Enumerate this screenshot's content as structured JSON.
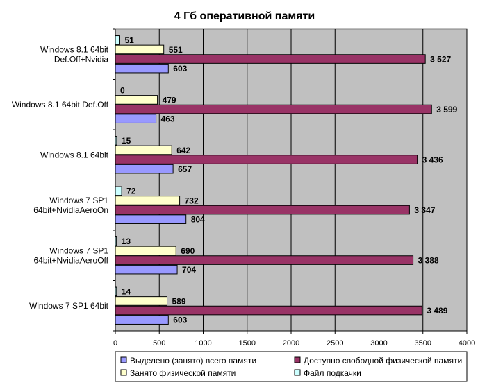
{
  "chart_data": {
    "type": "bar",
    "orientation": "horizontal",
    "title": "4 Гб оперативной памяти",
    "categories": [
      "Windows 8.1 64bit\nDef.Off+Nvidia",
      "Windows 8.1 64bit Def.Off",
      "Windows 8.1 64bit",
      "Windows 7 SP1\n64bit+NvidiaAeroOn",
      "Windows 7 SP1\n64bit+NvidiaAeroOff",
      "Windows 7 SP1 64bit"
    ],
    "series": [
      {
        "name": "Файл подкачки",
        "color": "#ccffff",
        "values": [
          51,
          0,
          15,
          72,
          13,
          14
        ],
        "labels": [
          "51",
          "0",
          "15",
          "72",
          "13",
          "14"
        ]
      },
      {
        "name": "Занято физической памяти",
        "color": "#ffffcc",
        "values": [
          551,
          479,
          642,
          732,
          690,
          589
        ],
        "labels": [
          "551",
          "479",
          "642",
          "732",
          "690",
          "589"
        ]
      },
      {
        "name": "Доступно свободной физической памяти",
        "color": "#993366",
        "values": [
          3527,
          3599,
          3436,
          3347,
          3388,
          3489
        ],
        "labels": [
          "3 527",
          "3 599",
          "3 436",
          "3 347",
          "3 388",
          "3 489"
        ]
      },
      {
        "name": "Выделено (занято) всего памяти",
        "color": "#9999ff",
        "values": [
          603,
          463,
          657,
          804,
          704,
          603
        ],
        "labels": [
          "603",
          "463",
          "657",
          "804",
          "704",
          "603"
        ]
      }
    ],
    "xlim": [
      0,
      4000
    ],
    "xticks": [
      0,
      500,
      1000,
      1500,
      2000,
      2500,
      3000,
      3500,
      4000
    ],
    "plot_background": "#c0c0c0",
    "grid": true,
    "legend": {
      "placement": "bottom",
      "entries": [
        {
          "name": "Выделено (занято) всего памяти",
          "color": "#9999ff"
        },
        {
          "name": "Доступно свободной физической памяти",
          "color": "#993366"
        },
        {
          "name": "Занято физической памяти",
          "color": "#ffffcc"
        },
        {
          "name": "Файл подкачки",
          "color": "#ccffff"
        }
      ]
    }
  }
}
